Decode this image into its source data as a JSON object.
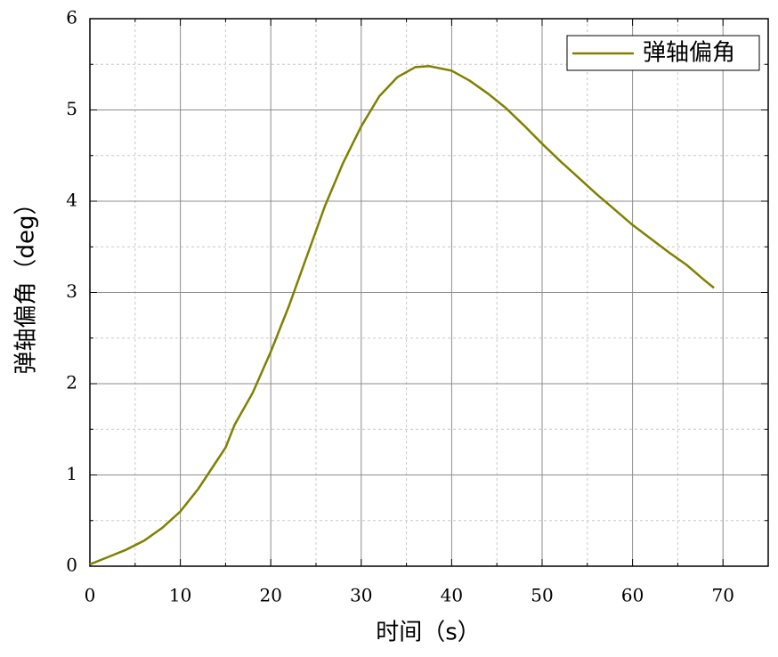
{
  "chart_data": {
    "type": "line",
    "x_label": "时间（s）",
    "y_label": "弹轴偏角（deg）",
    "x": [
      0,
      2,
      4,
      6,
      8,
      10,
      12,
      14,
      15,
      16,
      18,
      20,
      22,
      24,
      26,
      28,
      30,
      32,
      34,
      36,
      37.5,
      40,
      42,
      44,
      46,
      48,
      50,
      52,
      54,
      56,
      58,
      60,
      62,
      64,
      66,
      68,
      69
    ],
    "series": [
      {
        "name": "弹轴偏角",
        "color": "#808000",
        "values": [
          0.02,
          0.1,
          0.18,
          0.28,
          0.42,
          0.6,
          0.85,
          1.15,
          1.3,
          1.55,
          1.9,
          2.35,
          2.85,
          3.4,
          3.95,
          4.42,
          4.82,
          5.15,
          5.36,
          5.47,
          5.48,
          5.43,
          5.32,
          5.18,
          5.02,
          4.83,
          4.63,
          4.44,
          4.26,
          4.08,
          3.91,
          3.74,
          3.59,
          3.44,
          3.3,
          3.13,
          3.05
        ]
      }
    ],
    "xlim": [
      0,
      75
    ],
    "ylim": [
      0,
      6
    ],
    "xticks": [
      0,
      10,
      20,
      30,
      40,
      50,
      60,
      70
    ],
    "yticks": [
      0,
      1,
      2,
      3,
      4,
      5,
      6
    ],
    "x_minor_ticks": [
      5,
      15,
      25,
      35,
      45,
      55,
      65
    ],
    "y_minor_ticks": [
      0.5,
      1.5,
      2.5,
      3.5,
      4.5,
      5.5
    ],
    "grid": true,
    "legend": "upper right"
  }
}
